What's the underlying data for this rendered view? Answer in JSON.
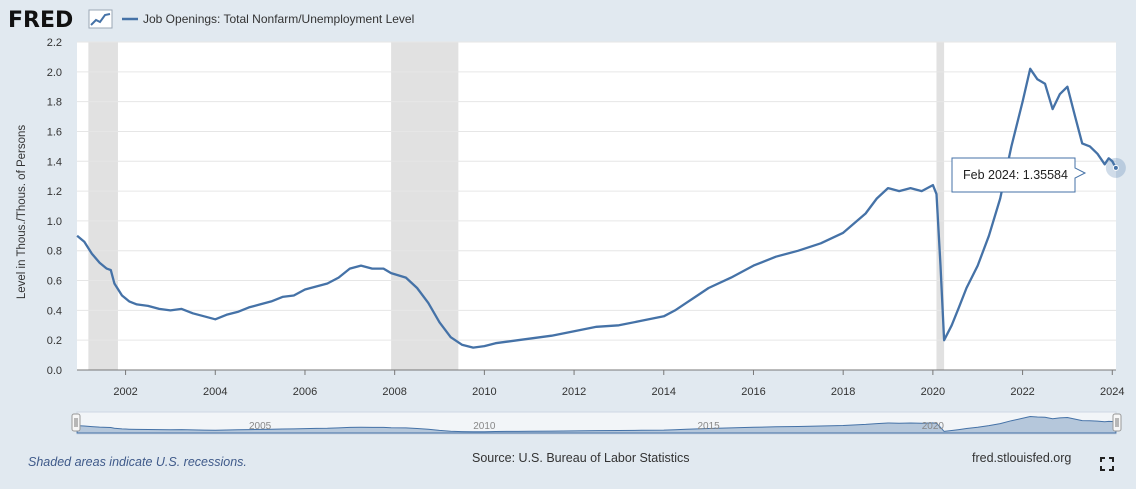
{
  "header": {
    "logo_text": "FRED",
    "legend_label": "Job Openings: Total Nonfarm/Unemployment Level"
  },
  "tooltip": {
    "date": "Feb 2024",
    "value": "1.35584"
  },
  "footer": {
    "recession_note": "Shaded areas indicate U.S. recessions.",
    "source": "Source: U.S. Bureau of Labor Statistics",
    "url": "fred.stlouisfed.org"
  },
  "colors": {
    "line": "#4572a7",
    "plot_bg": "#ffffff",
    "page_bg": "#e1e9f0",
    "recession": "#e1e1e1",
    "grid": "#e6e6e6"
  },
  "chart_data": {
    "type": "line",
    "title": "",
    "xlabel": "",
    "ylabel": "Level in Thous./Thous. of Persons",
    "xlim": [
      2000.917,
      2024.083
    ],
    "ylim": [
      0,
      2.2
    ],
    "yticks": [
      "0.0",
      "0.2",
      "0.4",
      "0.6",
      "0.8",
      "1.0",
      "1.2",
      "1.4",
      "1.6",
      "1.8",
      "2.0",
      "2.2"
    ],
    "xticks": [
      "2002",
      "2004",
      "2006",
      "2008",
      "2010",
      "2012",
      "2014",
      "2016",
      "2018",
      "2020",
      "2022",
      "2024"
    ],
    "navigator_labels": [
      "2005",
      "2010",
      "2015",
      "2020"
    ],
    "grid": true,
    "recessions": [
      [
        2001.17,
        2001.83
      ],
      [
        2007.92,
        2009.42
      ],
      [
        2020.08,
        2020.25
      ]
    ],
    "series": [
      {
        "name": "Job Openings: Total Nonfarm/Unemployment Level",
        "points": [
          [
            2000.92,
            0.9
          ],
          [
            2001.08,
            0.86
          ],
          [
            2001.25,
            0.78
          ],
          [
            2001.42,
            0.72
          ],
          [
            2001.58,
            0.68
          ],
          [
            2001.67,
            0.67
          ],
          [
            2001.75,
            0.58
          ],
          [
            2001.92,
            0.5
          ],
          [
            2002.08,
            0.46
          ],
          [
            2002.25,
            0.44
          ],
          [
            2002.5,
            0.43
          ],
          [
            2002.75,
            0.41
          ],
          [
            2003.0,
            0.4
          ],
          [
            2003.25,
            0.41
          ],
          [
            2003.5,
            0.38
          ],
          [
            2003.75,
            0.36
          ],
          [
            2004.0,
            0.34
          ],
          [
            2004.25,
            0.37
          ],
          [
            2004.5,
            0.39
          ],
          [
            2004.75,
            0.42
          ],
          [
            2005.0,
            0.44
          ],
          [
            2005.25,
            0.46
          ],
          [
            2005.5,
            0.49
          ],
          [
            2005.75,
            0.5
          ],
          [
            2006.0,
            0.54
          ],
          [
            2006.25,
            0.56
          ],
          [
            2006.5,
            0.58
          ],
          [
            2006.75,
            0.62
          ],
          [
            2007.0,
            0.68
          ],
          [
            2007.25,
            0.7
          ],
          [
            2007.5,
            0.68
          ],
          [
            2007.75,
            0.68
          ],
          [
            2007.92,
            0.65
          ],
          [
            2008.25,
            0.62
          ],
          [
            2008.5,
            0.55
          ],
          [
            2008.75,
            0.45
          ],
          [
            2009.0,
            0.32
          ],
          [
            2009.25,
            0.22
          ],
          [
            2009.5,
            0.17
          ],
          [
            2009.75,
            0.15
          ],
          [
            2010.0,
            0.16
          ],
          [
            2010.25,
            0.18
          ],
          [
            2010.5,
            0.19
          ],
          [
            2010.75,
            0.2
          ],
          [
            2011.0,
            0.21
          ],
          [
            2011.5,
            0.23
          ],
          [
            2012.0,
            0.26
          ],
          [
            2012.5,
            0.29
          ],
          [
            2013.0,
            0.3
          ],
          [
            2013.5,
            0.33
          ],
          [
            2014.0,
            0.36
          ],
          [
            2014.25,
            0.4
          ],
          [
            2014.5,
            0.45
          ],
          [
            2014.75,
            0.5
          ],
          [
            2015.0,
            0.55
          ],
          [
            2015.5,
            0.62
          ],
          [
            2016.0,
            0.7
          ],
          [
            2016.5,
            0.76
          ],
          [
            2017.0,
            0.8
          ],
          [
            2017.5,
            0.85
          ],
          [
            2018.0,
            0.92
          ],
          [
            2018.5,
            1.05
          ],
          [
            2018.75,
            1.15
          ],
          [
            2019.0,
            1.22
          ],
          [
            2019.25,
            1.2
          ],
          [
            2019.5,
            1.22
          ],
          [
            2019.75,
            1.2
          ],
          [
            2020.0,
            1.24
          ],
          [
            2020.08,
            1.18
          ],
          [
            2020.17,
            0.7
          ],
          [
            2020.25,
            0.2
          ],
          [
            2020.42,
            0.3
          ],
          [
            2020.58,
            0.42
          ],
          [
            2020.75,
            0.55
          ],
          [
            2021.0,
            0.7
          ],
          [
            2021.25,
            0.9
          ],
          [
            2021.5,
            1.15
          ],
          [
            2021.75,
            1.5
          ],
          [
            2022.0,
            1.8
          ],
          [
            2022.17,
            2.02
          ],
          [
            2022.33,
            1.95
          ],
          [
            2022.5,
            1.92
          ],
          [
            2022.67,
            1.75
          ],
          [
            2022.83,
            1.85
          ],
          [
            2023.0,
            1.9
          ],
          [
            2023.17,
            1.7
          ],
          [
            2023.33,
            1.52
          ],
          [
            2023.5,
            1.5
          ],
          [
            2023.67,
            1.45
          ],
          [
            2023.83,
            1.38
          ],
          [
            2023.92,
            1.42
          ],
          [
            2024.0,
            1.4
          ],
          [
            2024.08,
            1.35584
          ]
        ]
      }
    ]
  }
}
